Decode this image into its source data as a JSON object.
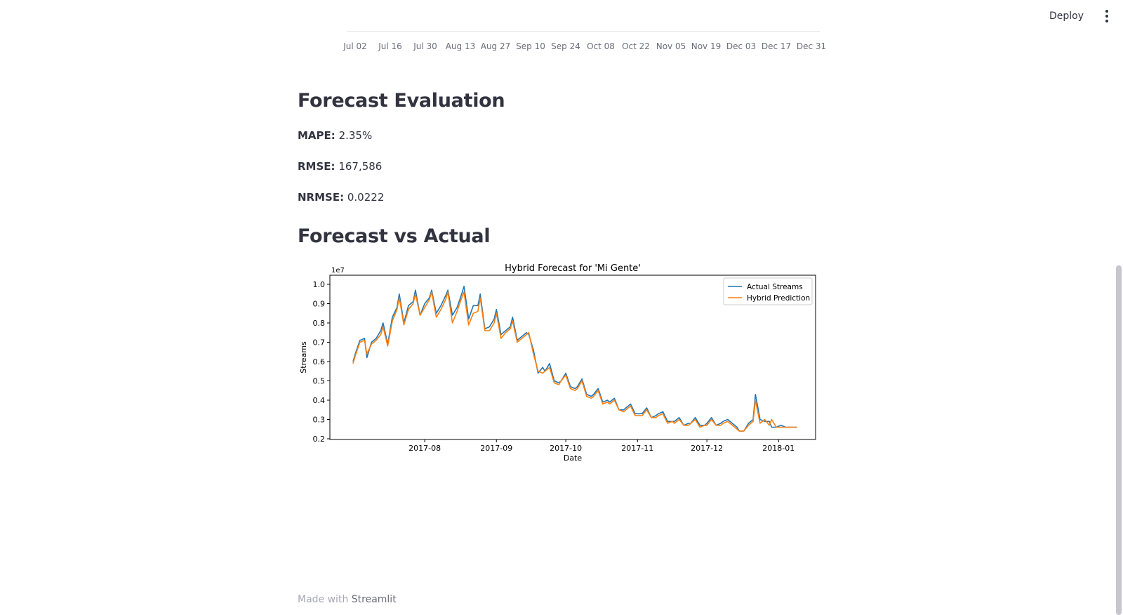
{
  "header": {
    "deploy_label": "Deploy",
    "menu_icon": "kebab-menu-icon"
  },
  "top_axis": {
    "ticks": [
      "Jul 02",
      "Jul 16",
      "Jul 30",
      "Aug 13",
      "Aug 27",
      "Sep 10",
      "Sep 24",
      "Oct 08",
      "Oct 22",
      "Nov 05",
      "Nov 19",
      "Dec 03",
      "Dec 17",
      "Dec 31"
    ]
  },
  "evaluation": {
    "title": "Forecast Evaluation",
    "mape_label": "MAPE:",
    "mape_value": "2.35%",
    "rmse_label": "RMSE:",
    "rmse_value": "167,586",
    "nrmse_label": "NRMSE:",
    "nrmse_value": "0.0222"
  },
  "comparison": {
    "title": "Forecast vs Actual"
  },
  "footer": {
    "prefix": "Made with",
    "brand": "Streamlit"
  },
  "chart_data": {
    "type": "line",
    "title": "Hybrid Forecast for 'Mi Gente'",
    "xlabel": "Date",
    "ylabel": "Streams",
    "y_multiplier": "1e7",
    "ylim": [
      0.2,
      1.0
    ],
    "xlim": [
      "2017-06-21",
      "2018-01-17"
    ],
    "y_ticks": [
      "0.2",
      "0.3",
      "0.4",
      "0.5",
      "0.6",
      "0.7",
      "0.8",
      "0.9",
      "1.0"
    ],
    "x_ticks": [
      "2017-08",
      "2017-09",
      "2017-10",
      "2017-11",
      "2017-12",
      "2018-01"
    ],
    "legend_position": "top-right",
    "grid": false,
    "series": [
      {
        "name": "Actual Streams",
        "color": "#1f77b4",
        "x": [
          "2017-07-01",
          "2017-07-02",
          "2017-07-04",
          "2017-07-06",
          "2017-07-07",
          "2017-07-09",
          "2017-07-11",
          "2017-07-13",
          "2017-07-14",
          "2017-07-16",
          "2017-07-18",
          "2017-07-20",
          "2017-07-21",
          "2017-07-23",
          "2017-07-25",
          "2017-07-27",
          "2017-07-28",
          "2017-07-30",
          "2017-08-01",
          "2017-08-03",
          "2017-08-04",
          "2017-08-06",
          "2017-08-08",
          "2017-08-10",
          "2017-08-11",
          "2017-08-13",
          "2017-08-15",
          "2017-08-17",
          "2017-08-18",
          "2017-08-20",
          "2017-08-22",
          "2017-08-24",
          "2017-08-25",
          "2017-08-27",
          "2017-08-29",
          "2017-08-31",
          "2017-09-01",
          "2017-09-03",
          "2017-09-05",
          "2017-09-07",
          "2017-09-08",
          "2017-09-10",
          "2017-09-12",
          "2017-09-14",
          "2017-09-15",
          "2017-09-17",
          "2017-09-19",
          "2017-09-21",
          "2017-09-22",
          "2017-09-24",
          "2017-09-26",
          "2017-09-28",
          "2017-09-29",
          "2017-10-01",
          "2017-10-03",
          "2017-10-05",
          "2017-10-06",
          "2017-10-08",
          "2017-10-10",
          "2017-10-12",
          "2017-10-13",
          "2017-10-15",
          "2017-10-17",
          "2017-10-19",
          "2017-10-20",
          "2017-10-22",
          "2017-10-24",
          "2017-10-26",
          "2017-10-27",
          "2017-10-29",
          "2017-10-31",
          "2017-11-02",
          "2017-11-03",
          "2017-11-05",
          "2017-11-07",
          "2017-11-09",
          "2017-11-10",
          "2017-11-12",
          "2017-11-14",
          "2017-11-16",
          "2017-11-17",
          "2017-11-19",
          "2017-11-21",
          "2017-11-23",
          "2017-11-24",
          "2017-11-26",
          "2017-11-28",
          "2017-11-30",
          "2017-12-01",
          "2017-12-03",
          "2017-12-05",
          "2017-12-07",
          "2017-12-08",
          "2017-12-10",
          "2017-12-12",
          "2017-12-14",
          "2017-12-15",
          "2017-12-17",
          "2017-12-19",
          "2017-12-21",
          "2017-12-22",
          "2017-12-24",
          "2017-12-26",
          "2017-12-28",
          "2017-12-29",
          "2017-12-31",
          "2018-01-02",
          "2018-01-04",
          "2018-01-05",
          "2018-01-07",
          "2018-01-09"
        ],
        "values": [
          0.6,
          0.64,
          0.71,
          0.72,
          0.62,
          0.7,
          0.72,
          0.76,
          0.8,
          0.69,
          0.83,
          0.88,
          0.95,
          0.8,
          0.89,
          0.91,
          0.97,
          0.84,
          0.9,
          0.93,
          0.97,
          0.85,
          0.89,
          0.94,
          0.97,
          0.84,
          0.88,
          0.95,
          0.99,
          0.82,
          0.89,
          0.89,
          0.95,
          0.77,
          0.78,
          0.82,
          0.87,
          0.74,
          0.76,
          0.78,
          0.83,
          0.71,
          0.73,
          0.75,
          0.74,
          0.66,
          0.54,
          0.57,
          0.55,
          0.59,
          0.5,
          0.49,
          0.5,
          0.54,
          0.47,
          0.46,
          0.47,
          0.51,
          0.43,
          0.42,
          0.43,
          0.46,
          0.39,
          0.4,
          0.39,
          0.41,
          0.35,
          0.35,
          0.36,
          0.38,
          0.33,
          0.33,
          0.33,
          0.36,
          0.31,
          0.32,
          0.33,
          0.34,
          0.29,
          0.29,
          0.29,
          0.31,
          0.27,
          0.28,
          0.28,
          0.31,
          0.27,
          0.27,
          0.28,
          0.31,
          0.27,
          0.28,
          0.29,
          0.3,
          0.28,
          0.26,
          0.24,
          0.24,
          0.28,
          0.3,
          0.43,
          0.3,
          0.29,
          0.29,
          0.26,
          0.26,
          0.27,
          0.26,
          0.26,
          0.26,
          0.26
        ],
        "note": ""
      },
      {
        "name": "Hybrid Prediction",
        "color": "#ff7f0e",
        "x": [
          "2017-07-01",
          "2017-07-02",
          "2017-07-04",
          "2017-07-06",
          "2017-07-07",
          "2017-07-09",
          "2017-07-11",
          "2017-07-13",
          "2017-07-14",
          "2017-07-16",
          "2017-07-18",
          "2017-07-20",
          "2017-07-21",
          "2017-07-23",
          "2017-07-25",
          "2017-07-27",
          "2017-07-28",
          "2017-07-30",
          "2017-08-01",
          "2017-08-03",
          "2017-08-04",
          "2017-08-06",
          "2017-08-08",
          "2017-08-10",
          "2017-08-11",
          "2017-08-13",
          "2017-08-15",
          "2017-08-17",
          "2017-08-18",
          "2017-08-20",
          "2017-08-22",
          "2017-08-24",
          "2017-08-25",
          "2017-08-27",
          "2017-08-29",
          "2017-08-31",
          "2017-09-01",
          "2017-09-03",
          "2017-09-05",
          "2017-09-07",
          "2017-09-08",
          "2017-09-10",
          "2017-09-12",
          "2017-09-14",
          "2017-09-15",
          "2017-09-17",
          "2017-09-19",
          "2017-09-21",
          "2017-09-22",
          "2017-09-24",
          "2017-09-26",
          "2017-09-28",
          "2017-09-29",
          "2017-10-01",
          "2017-10-03",
          "2017-10-05",
          "2017-10-06",
          "2017-10-08",
          "2017-10-10",
          "2017-10-12",
          "2017-10-13",
          "2017-10-15",
          "2017-10-17",
          "2017-10-19",
          "2017-10-20",
          "2017-10-22",
          "2017-10-24",
          "2017-10-26",
          "2017-10-27",
          "2017-10-29",
          "2017-10-31",
          "2017-11-02",
          "2017-11-03",
          "2017-11-05",
          "2017-11-07",
          "2017-11-09",
          "2017-11-10",
          "2017-11-12",
          "2017-11-14",
          "2017-11-16",
          "2017-11-17",
          "2017-11-19",
          "2017-11-21",
          "2017-11-23",
          "2017-11-24",
          "2017-11-26",
          "2017-11-28",
          "2017-11-30",
          "2017-12-01",
          "2017-12-03",
          "2017-12-05",
          "2017-12-07",
          "2017-12-08",
          "2017-12-10",
          "2017-12-12",
          "2017-12-14",
          "2017-12-15",
          "2017-12-17",
          "2017-12-19",
          "2017-12-21",
          "2017-12-22",
          "2017-12-24",
          "2017-12-26",
          "2017-12-28",
          "2017-12-29",
          "2017-12-31",
          "2018-01-02",
          "2018-01-04",
          "2018-01-05",
          "2018-01-07",
          "2018-01-09"
        ],
        "values": [
          0.59,
          0.63,
          0.7,
          0.71,
          0.64,
          0.69,
          0.71,
          0.74,
          0.78,
          0.68,
          0.81,
          0.87,
          0.93,
          0.79,
          0.87,
          0.9,
          0.95,
          0.84,
          0.88,
          0.92,
          0.96,
          0.83,
          0.87,
          0.92,
          0.96,
          0.8,
          0.86,
          0.93,
          0.96,
          0.79,
          0.85,
          0.86,
          0.93,
          0.76,
          0.76,
          0.8,
          0.85,
          0.72,
          0.75,
          0.77,
          0.81,
          0.7,
          0.72,
          0.74,
          0.75,
          0.64,
          0.55,
          0.54,
          0.55,
          0.57,
          0.49,
          0.48,
          0.5,
          0.53,
          0.46,
          0.45,
          0.46,
          0.5,
          0.42,
          0.41,
          0.42,
          0.45,
          0.38,
          0.39,
          0.38,
          0.4,
          0.35,
          0.34,
          0.35,
          0.37,
          0.32,
          0.32,
          0.32,
          0.35,
          0.31,
          0.31,
          0.32,
          0.33,
          0.28,
          0.29,
          0.28,
          0.3,
          0.27,
          0.27,
          0.28,
          0.3,
          0.26,
          0.27,
          0.27,
          0.3,
          0.27,
          0.27,
          0.28,
          0.29,
          0.27,
          0.25,
          0.24,
          0.24,
          0.27,
          0.29,
          0.4,
          0.28,
          0.3,
          0.27,
          0.3,
          0.26,
          0.26,
          0.26,
          0.26,
          0.26,
          0.26
        ],
        "note": ""
      }
    ]
  }
}
